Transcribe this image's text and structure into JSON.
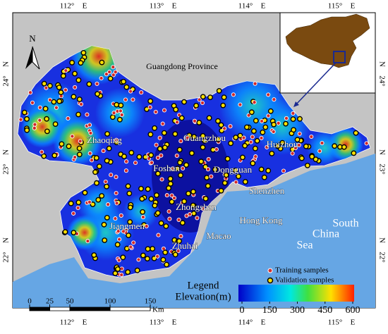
{
  "map": {
    "longitude_labels": [
      {
        "degree": "112°",
        "hemisphere": "E"
      },
      {
        "degree": "113°",
        "hemisphere": "E"
      },
      {
        "degree": "114°",
        "hemisphere": "E"
      },
      {
        "degree": "115°",
        "hemisphere": "E"
      }
    ],
    "latitude_labels": [
      {
        "degree": "24°",
        "hemisphere": "N"
      },
      {
        "degree": "23°",
        "hemisphere": "N"
      },
      {
        "degree": "22°",
        "hemisphere": "N"
      }
    ],
    "north_arrow": "N",
    "province_label": "Guangdong Province",
    "places": [
      "Zhaoqing",
      "Guangzhou",
      "Huizhou",
      "Foshan",
      "Dongguan",
      "Shenzhen",
      "Zhongshan",
      "Jiangmen",
      "Hong Kong",
      "Macao",
      "Zhuhai"
    ],
    "sea_label": [
      "South",
      "China",
      "Sea"
    ],
    "legend": {
      "title": "Legend",
      "items": [
        "Training samples",
        "Validation samples"
      ],
      "elevation_title": "Elevation(m)",
      "elevation_ticks": [
        0,
        150,
        300,
        450,
        600
      ]
    },
    "scale_bar": {
      "ticks": [
        0,
        25,
        50,
        100,
        150
      ],
      "unit": "Km"
    }
  }
}
